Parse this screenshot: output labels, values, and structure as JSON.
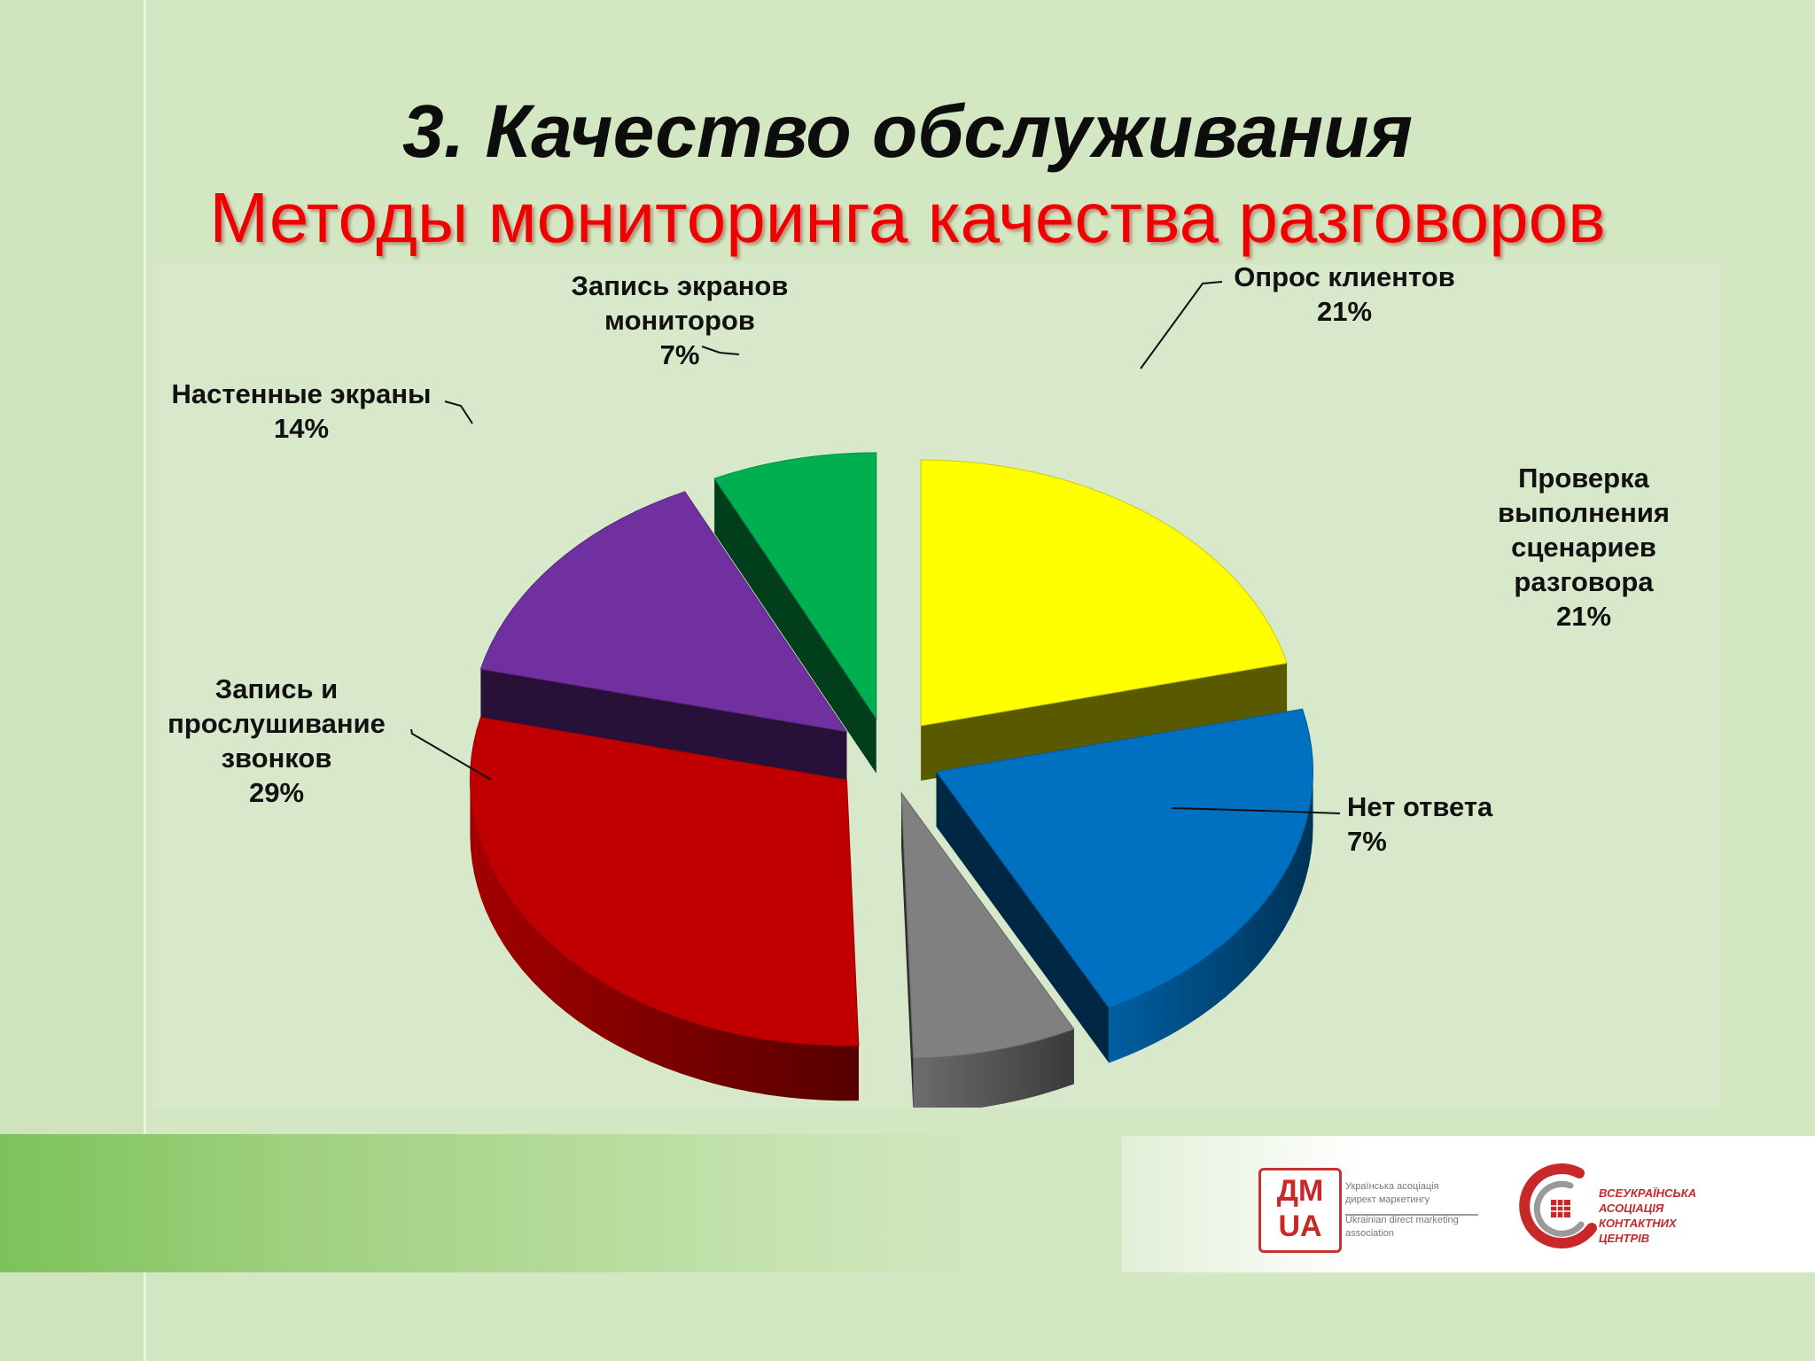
{
  "slide": {
    "title": "3. Качество обслуживания",
    "subtitle": "Методы мониторинга качества разговоров"
  },
  "chart_data": {
    "type": "pie",
    "style": "3d-exploded",
    "unit": "%",
    "slices": [
      {
        "label": "Опрос клиентов",
        "value": 21,
        "value_label": "21%",
        "color": "#ffff00"
      },
      {
        "label": "Проверка выполнения сценариев разговора",
        "value": 21,
        "value_label": "21%",
        "color": "#0070c0"
      },
      {
        "label": "Нет ответа",
        "value": 7,
        "value_label": "7%",
        "color": "#808080"
      },
      {
        "label": "Запись и прослушивание звонков",
        "value": 29,
        "value_label": "29%",
        "color": "#c00000"
      },
      {
        "label": "Настенные экраны",
        "value": 14,
        "value_label": "14%",
        "color": "#7030a0"
      },
      {
        "label": "Запись экранов мониторов",
        "value": 7,
        "value_label": "7%",
        "color": "#00b050"
      }
    ],
    "label_lines": [
      [
        "Опрос клиентов",
        "21%"
      ],
      [
        "Проверка",
        "выполнения",
        "сценариев",
        "разговора",
        "21%"
      ],
      [
        "Нет ответа",
        "7%"
      ],
      [
        "Запись и",
        "прослушивание",
        "звонков",
        "29%"
      ],
      [
        "Настенные экраны",
        "14%"
      ],
      [
        "Запись экранов",
        "мониторов",
        "7%"
      ]
    ]
  },
  "footer": {
    "logo_dm": {
      "line1": "ДМ",
      "line2": "UA"
    },
    "logo_dm_caption": [
      "Українська асоціація",
      "директ маркетингу",
      "Ukrainian direct marketing",
      "association"
    ],
    "logo_aakc": [
      "ВСЕУКРАЇНСЬКА",
      "АСОЦІАЦІЯ",
      "КОНТАКТНИХ",
      "ЦЕНТРІВ"
    ]
  }
}
